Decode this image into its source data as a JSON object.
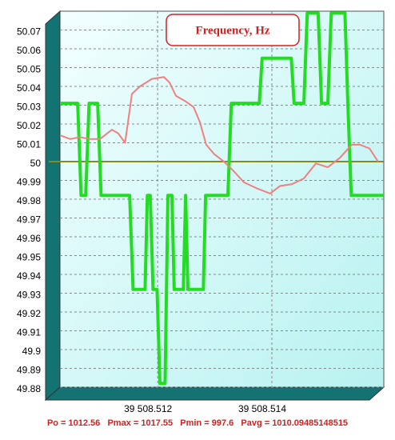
{
  "chart_data": {
    "type": "line",
    "title": "Frequency, Hz",
    "footer": "Po = 1012.56   Pmax = 1017.55   Pmin = 997.6   Pavg = 1010.09485148515",
    "xlim": [
      39508.51029,
      39508.51596
    ],
    "xticks": [
      {
        "value": 39508.512,
        "label": "39 508.512"
      },
      {
        "value": 39508.514,
        "label": "39 508.514"
      }
    ],
    "ylim": [
      49.88,
      50.08
    ],
    "yticks": [
      49.88,
      49.89,
      49.9,
      49.91,
      49.92,
      49.93,
      49.94,
      49.95,
      49.96,
      49.97,
      49.98,
      49.99,
      50,
      50.01,
      50.02,
      50.03,
      50.04,
      50.05,
      50.06,
      50.07
    ],
    "grid": true,
    "reference_line": {
      "value": 50,
      "color": "#8a8a1a"
    },
    "series": [
      {
        "color": "#22dd22",
        "width": 4,
        "x": [
          39508.51029,
          39508.5106,
          39508.51066,
          39508.51074,
          39508.5108,
          39508.51095,
          39508.51101,
          39508.51151,
          39508.51157,
          39508.51178,
          39508.51182,
          39508.51187,
          39508.51192,
          39508.51199,
          39508.51204,
          39508.51213,
          39508.51218,
          39508.51225,
          39508.51229,
          39508.51245,
          39508.51249,
          39508.51253,
          39508.5128,
          39508.51284,
          39508.51323,
          39508.51329,
          39508.51378,
          39508.51383,
          39508.51434,
          39508.51439,
          39508.51456,
          39508.51462,
          39508.51481,
          39508.51487,
          39508.51498,
          39508.51504,
          39508.51528,
          39508.51533,
          39508.51539,
          39508.51596
        ],
        "values": [
          50.031,
          50.031,
          49.982,
          49.982,
          50.031,
          50.031,
          49.982,
          49.982,
          49.932,
          49.932,
          49.982,
          49.982,
          49.932,
          49.932,
          49.882,
          49.882,
          49.982,
          49.982,
          49.932,
          49.932,
          49.982,
          49.932,
          49.932,
          49.982,
          49.982,
          50.031,
          50.031,
          50.055,
          50.055,
          50.031,
          50.031,
          50.079,
          50.079,
          50.031,
          50.031,
          50.079,
          50.079,
          50.031,
          49.982,
          49.982
        ]
      },
      {
        "color": "#f08080",
        "width": 2,
        "x": [
          39508.51029,
          39508.51047,
          39508.51064,
          39508.51081,
          39508.51099,
          39508.5112,
          39508.51131,
          39508.51143,
          39508.51155,
          39508.51169,
          39508.5119,
          39508.51211,
          39508.51221,
          39508.51232,
          39508.51249,
          39508.51263,
          39508.51274,
          39508.51285,
          39508.51299,
          39508.51316,
          39508.51333,
          39508.51351,
          39508.51372,
          39508.51397,
          39508.51414,
          39508.51435,
          39508.51456,
          39508.51477,
          39508.51498,
          39508.51519,
          39508.5154,
          39508.51554,
          39508.51571,
          39508.51586
        ],
        "values": [
          50.014,
          50.012,
          50.013,
          50.012,
          50.012,
          50.017,
          50.015,
          50.01,
          50.036,
          50.04,
          50.044,
          50.045,
          50.042,
          50.035,
          50.032,
          50.029,
          50.021,
          50.009,
          50.004,
          50.0,
          49.995,
          49.989,
          49.986,
          49.983,
          49.987,
          49.988,
          49.991,
          49.999,
          49.997,
          50.002,
          50.009,
          50.009,
          50.007,
          50.0
        ]
      }
    ]
  }
}
